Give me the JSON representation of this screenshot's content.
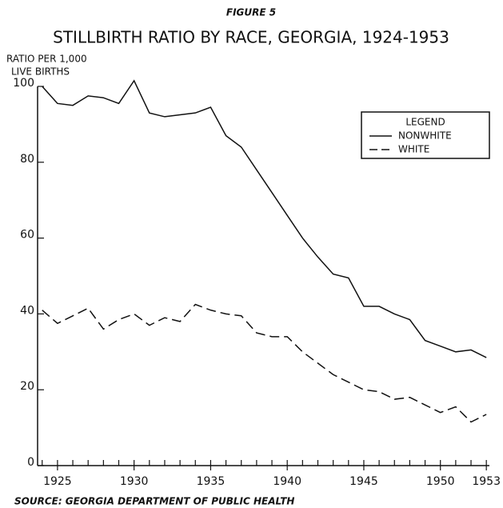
{
  "chart_data": {
    "type": "line",
    "figure_label": "FIGURE 5",
    "title": "STILLBIRTH RATIO BY RACE, GEORGIA, 1924-1953",
    "ylabel": [
      "RATIO PER 1,000",
      "LIVE BIRTHS"
    ],
    "source": "SOURCE: GEORGIA DEPARTMENT OF PUBLIC HEALTH",
    "legend_title": "LEGEND",
    "legend": "upper right",
    "x": [
      1924,
      1925,
      1926,
      1927,
      1928,
      1929,
      1930,
      1931,
      1932,
      1933,
      1934,
      1935,
      1936,
      1937,
      1938,
      1939,
      1940,
      1941,
      1942,
      1943,
      1944,
      1945,
      1946,
      1947,
      1948,
      1949,
      1950,
      1951,
      1952,
      1953
    ],
    "series": [
      {
        "name": "NONWHITE",
        "color": "#111111",
        "dash": "solid",
        "values": [
          100,
          95.5,
          95,
          97.5,
          97,
          95.5,
          101.5,
          93,
          92,
          92.5,
          93,
          94.5,
          87,
          84,
          78,
          72,
          66,
          60,
          55,
          50.5,
          49.5,
          42,
          42,
          40,
          38.5,
          33,
          31.5,
          30,
          30.5,
          28.5
        ]
      },
      {
        "name": "WHITE",
        "color": "#111111",
        "dash": "dashed",
        "values": [
          41,
          37.5,
          39.5,
          41.5,
          36,
          38.5,
          40,
          37,
          39,
          38,
          42.5,
          41,
          40,
          39.5,
          35,
          34,
          34,
          30,
          27,
          24,
          22,
          20,
          19.5,
          17.5,
          18,
          16,
          14,
          15.5,
          11.5,
          13.5
        ]
      }
    ],
    "xlim": [
      1923.7,
      1953.2
    ],
    "xticks": [
      1925,
      1930,
      1935,
      1940,
      1945,
      1950,
      1953
    ],
    "ylim": [
      0,
      100
    ],
    "yticks": [
      0,
      20,
      40,
      60,
      80,
      100
    ],
    "grid": false
  }
}
